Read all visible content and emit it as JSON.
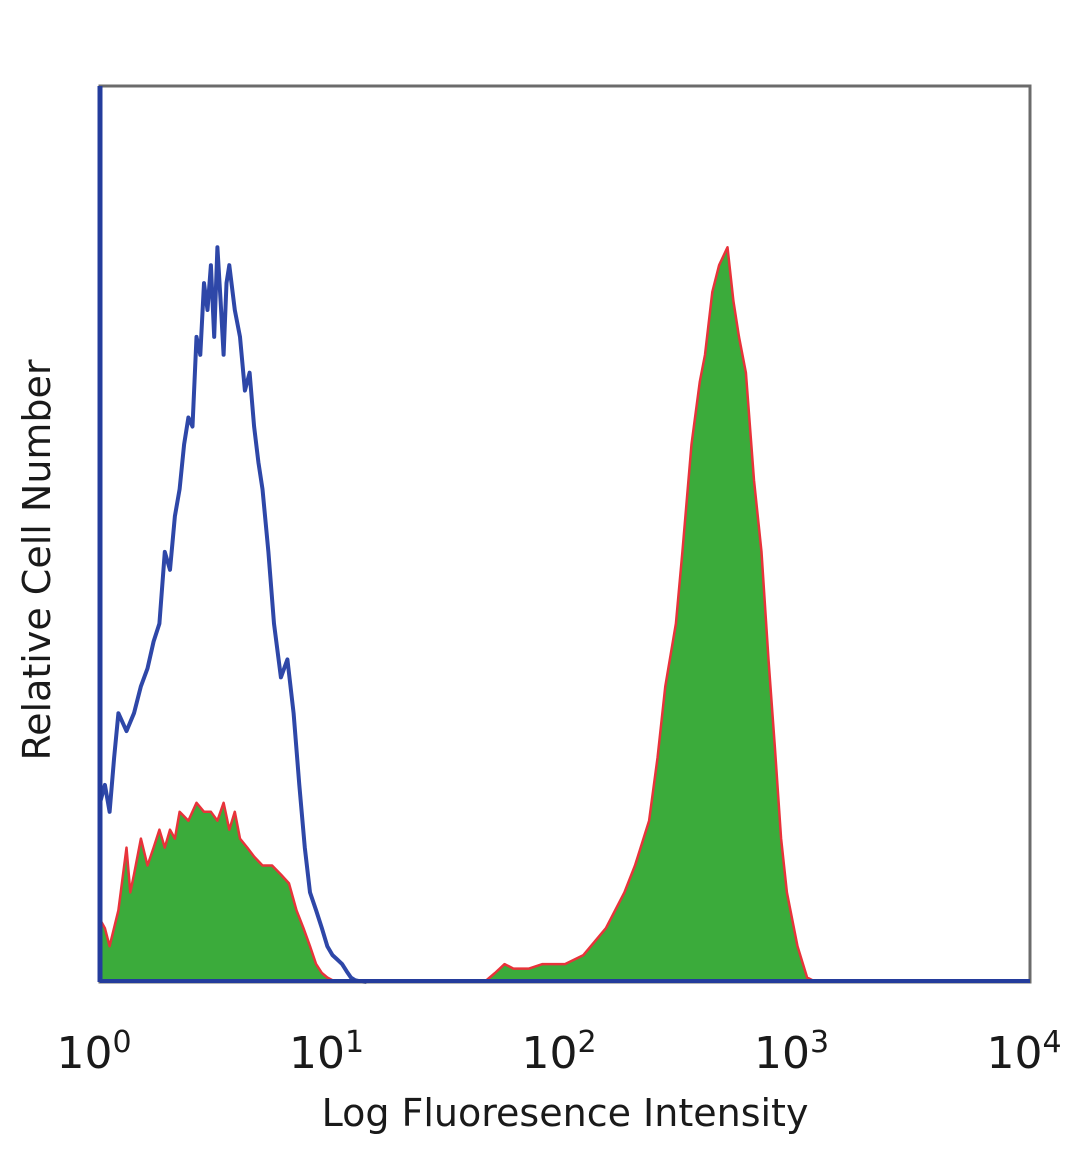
{
  "chart_data": {
    "type": "area",
    "title": "",
    "xlabel": "Log Fluoresence Intensity",
    "ylabel": "Relative Cell Number",
    "x_scale": "log",
    "xlim": [
      1,
      10000
    ],
    "ylim": [
      0,
      100
    ],
    "x_ticks": [
      {
        "base": "10",
        "exp": "0"
      },
      {
        "base": "10",
        "exp": "1"
      },
      {
        "base": "10",
        "exp": "2"
      },
      {
        "base": "10",
        "exp": "3"
      },
      {
        "base": "10",
        "exp": "4"
      }
    ],
    "grid": false,
    "legend": "none",
    "series": [
      {
        "style": "outline",
        "color": "#2e47a8",
        "x": [
          1.0,
          1.05,
          1.1,
          1.15,
          1.2,
          1.3,
          1.4,
          1.5,
          1.6,
          1.7,
          1.8,
          1.9,
          2.0,
          2.1,
          2.2,
          2.3,
          2.4,
          2.5,
          2.6,
          2.7,
          2.8,
          2.9,
          3.0,
          3.1,
          3.2,
          3.3,
          3.4,
          3.5,
          3.6,
          3.8,
          4.0,
          4.2,
          4.4,
          4.6,
          4.8,
          5.0,
          5.3,
          5.6,
          6.0,
          6.4,
          6.8,
          7.2,
          7.6,
          8.0,
          8.5,
          9.0,
          9.5,
          10.0,
          10.5,
          11.0,
          11.5,
          12.0,
          12.5,
          13.0,
          14.0
        ],
        "y": [
          20,
          22,
          19,
          25,
          30,
          28,
          30,
          33,
          35,
          38,
          40,
          48,
          46,
          52,
          55,
          60,
          63,
          62,
          72,
          70,
          78,
          75,
          80,
          72,
          82,
          76,
          70,
          78,
          80,
          75,
          72,
          66,
          68,
          62,
          58,
          55,
          48,
          40,
          34,
          36,
          30,
          22,
          15,
          10,
          8,
          6,
          4,
          3,
          2.5,
          2,
          1.2,
          0.5,
          0.2,
          0.1,
          0
        ]
      },
      {
        "style": "filled",
        "fill": "#3bab3b",
        "edge": "#e8333a",
        "x": [
          1.0,
          1.05,
          1.1,
          1.2,
          1.3,
          1.35,
          1.4,
          1.5,
          1.6,
          1.7,
          1.8,
          1.9,
          2.0,
          2.1,
          2.2,
          2.4,
          2.6,
          2.8,
          3.0,
          3.2,
          3.4,
          3.6,
          3.8,
          4.0,
          4.3,
          4.6,
          5.0,
          5.5,
          6.0,
          6.5,
          7.0,
          7.5,
          8.0,
          8.5,
          9.0,
          9.5,
          10.0,
          11.0,
          12.0,
          20,
          30,
          45,
          50,
          55,
          60,
          70,
          80,
          100,
          120,
          150,
          180,
          200,
          230,
          250,
          270,
          300,
          320,
          350,
          380,
          400,
          430,
          460,
          500,
          530,
          560,
          600,
          650,
          700,
          750,
          800,
          850,
          900,
          1000,
          1100,
          1200,
          1300,
          1400,
          1500,
          1600,
          2000,
          5000,
          10000
        ],
        "y": [
          7,
          6,
          4,
          8,
          15,
          10,
          12,
          16,
          13,
          15,
          17,
          15,
          17,
          16,
          19,
          18,
          20,
          19,
          19,
          18,
          20,
          17,
          19,
          16,
          15,
          14,
          13,
          13,
          12,
          11,
          8,
          6,
          4,
          2,
          1,
          0.5,
          0.2,
          0.1,
          0,
          0,
          0,
          0,
          1,
          2,
          1.5,
          1.5,
          2,
          2,
          3,
          6,
          10,
          13,
          18,
          25,
          33,
          40,
          48,
          60,
          67,
          70,
          77,
          80,
          82,
          76,
          72,
          68,
          56,
          48,
          36,
          26,
          16,
          10,
          4,
          0.5,
          0,
          0,
          0,
          0,
          0,
          0,
          0,
          0
        ]
      }
    ]
  }
}
